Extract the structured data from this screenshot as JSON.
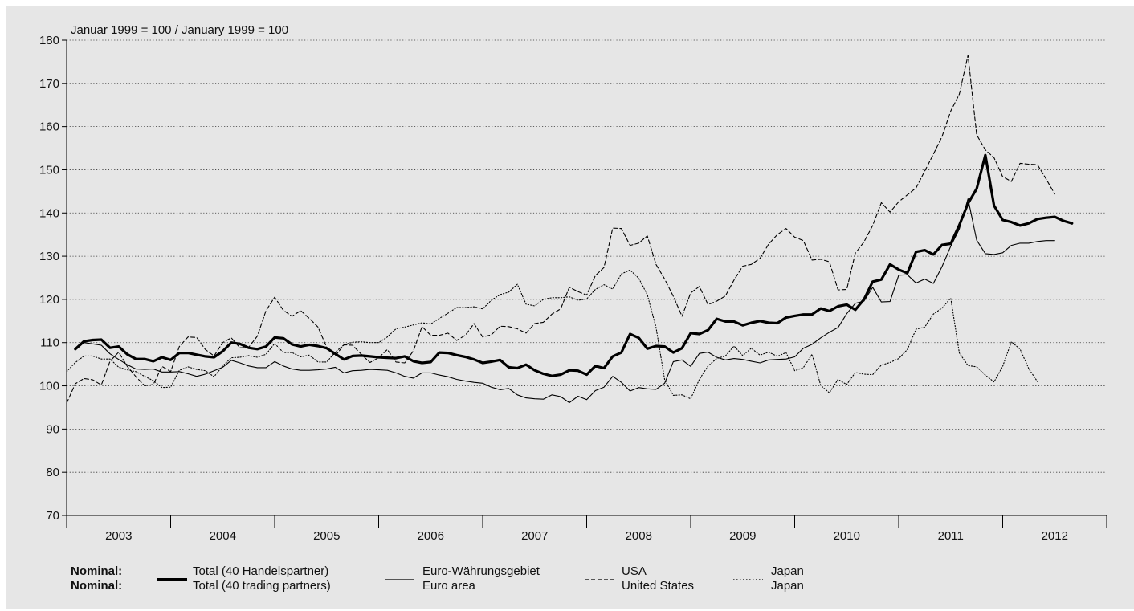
{
  "chart_data": {
    "type": "line",
    "subtitle": "Januar 1999 = 100 / January 1999 = 100",
    "ylim": [
      70,
      180
    ],
    "yticks": [
      70,
      80,
      90,
      100,
      110,
      120,
      130,
      140,
      150,
      160,
      170,
      180
    ],
    "x_start": "2002-12",
    "x_end": "2012-12",
    "x_categories": [
      "2003",
      "2004",
      "2005",
      "2006",
      "2007",
      "2008",
      "2009",
      "2010",
      "2011",
      "2012"
    ],
    "grid": "horizontal dotted",
    "legend_placement": "bottom",
    "legend_prefix": [
      "Nominal:",
      "Nominal:"
    ],
    "series": [
      {
        "name": "Total (40 Handelspartner)",
        "name_en": "Total (40 trading partners)",
        "style": "thick",
        "start": "2003-01",
        "values": [
          108.5,
          110.3,
          110.6,
          110.7,
          108.8,
          109.1,
          107.3,
          106.2,
          106.2,
          105.7,
          106.6,
          106.0,
          107.6,
          107.6,
          107.2,
          106.8,
          106.6,
          108.0,
          110.0,
          109.7,
          108.8,
          108.5,
          109.1,
          111.2,
          111.0,
          109.6,
          109.1,
          109.5,
          109.2,
          108.7,
          107.4,
          106.1,
          106.9,
          107.0,
          106.8,
          106.6,
          106.5,
          106.4,
          106.8,
          105.7,
          105.3,
          105.5,
          107.7,
          107.6,
          107.1,
          106.7,
          106.1,
          105.3,
          105.6,
          106.0,
          104.3,
          104.1,
          104.9,
          103.6,
          102.8,
          102.3,
          102.6,
          103.6,
          103.5,
          102.6,
          104.6,
          104.1,
          106.8,
          107.7,
          112.0,
          111.1,
          108.6,
          109.2,
          109.1,
          107.7,
          108.7,
          112.2,
          112.0,
          112.9,
          115.5,
          114.9,
          114.9,
          114.0,
          114.6,
          115.0,
          114.6,
          114.5,
          115.8,
          116.2,
          116.5,
          116.5,
          117.9,
          117.3,
          118.4,
          118.8,
          117.6,
          120.0,
          124.1,
          124.6,
          128.1,
          126.9,
          126.1,
          131.0,
          131.4,
          130.4,
          132.6,
          132.9,
          137.2,
          142.2,
          145.6,
          153.4,
          141.7,
          138.4,
          137.9,
          137.1,
          137.6,
          138.6,
          138.9,
          139.1,
          138.2,
          137.6
        ]
      },
      {
        "name": "Euro-Währungsgebiet",
        "name_en": "Euro area",
        "style": "thin",
        "start": "2003-01",
        "values": [
          108.3,
          110.0,
          109.7,
          109.4,
          107.4,
          106.1,
          104.9,
          103.9,
          103.8,
          103.9,
          103.2,
          103.2,
          103.3,
          102.8,
          102.2,
          102.7,
          103.5,
          104.3,
          105.9,
          105.3,
          104.6,
          104.2,
          104.2,
          105.6,
          104.6,
          103.9,
          103.6,
          103.6,
          103.7,
          103.9,
          104.3,
          103.0,
          103.5,
          103.6,
          103.8,
          103.7,
          103.6,
          103.0,
          102.2,
          101.8,
          103.0,
          103.0,
          102.5,
          102.1,
          101.5,
          101.1,
          100.8,
          100.6,
          99.7,
          99.1,
          99.4,
          97.9,
          97.2,
          97.0,
          96.9,
          97.9,
          97.5,
          96.1,
          97.6,
          96.8,
          98.9,
          99.7,
          102.2,
          100.8,
          98.8,
          99.6,
          99.3,
          99.2,
          100.6,
          105.6,
          106.0,
          104.5,
          107.5,
          107.8,
          106.6,
          106.0,
          106.3,
          106.1,
          105.7,
          105.3,
          106.0,
          106.1,
          106.2,
          106.7,
          108.7,
          109.6,
          111.1,
          112.4,
          113.5,
          116.7,
          119.1,
          119.6,
          122.8,
          119.4,
          119.5,
          125.6,
          125.7,
          123.8,
          124.7,
          123.7,
          127.6,
          132.3,
          136.3,
          143.3,
          133.7,
          130.6,
          130.4,
          130.8,
          132.5,
          133.0,
          133.0,
          133.4,
          133.6,
          133.6
        ]
      },
      {
        "name": "USA",
        "name_en": "United States",
        "style": "dashed",
        "start": "2002-12",
        "values": [
          96.0,
          100.5,
          101.7,
          101.4,
          100.2,
          105.7,
          107.8,
          104.5,
          102.1,
          100.0,
          100.3,
          104.5,
          103.3,
          109.1,
          111.3,
          111.2,
          108.4,
          106.9,
          110.0,
          111.1,
          108.8,
          108.9,
          111.5,
          117.4,
          120.5,
          117.5,
          116.1,
          117.4,
          115.6,
          113.6,
          108.9,
          106.9,
          109.5,
          109.4,
          107.3,
          105.4,
          106.5,
          108.4,
          105.5,
          105.3,
          108.1,
          113.7,
          111.7,
          111.7,
          112.2,
          110.5,
          111.7,
          114.4,
          111.3,
          111.8,
          113.8,
          113.7,
          113.2,
          112.2,
          114.4,
          114.7,
          116.6,
          117.8,
          122.8,
          121.8,
          121.0,
          125.5,
          127.4,
          136.5,
          136.4,
          132.5,
          133.0,
          134.7,
          128.1,
          124.7,
          120.7,
          116.1,
          121.5,
          123.0,
          118.8,
          119.6,
          120.8,
          124.5,
          127.7,
          128.1,
          129.5,
          132.8,
          135.0,
          136.4,
          134.4,
          133.6,
          129.1,
          129.3,
          128.7,
          122.2,
          122.3,
          130.7,
          133.3,
          137.1,
          142.4,
          140.2,
          142.6,
          144.2,
          145.8,
          149.7,
          153.6,
          157.7,
          163.6,
          167.5,
          176.5,
          158.1,
          154.6,
          152.8,
          148.4,
          147.3,
          151.5,
          151.3,
          151.2,
          147.9,
          144.4
        ]
      },
      {
        "name": "Japan",
        "name_en": "Japan",
        "style": "dotted",
        "start": "2002-12",
        "values": [
          103.3,
          105.4,
          106.9,
          106.9,
          106.2,
          106.2,
          104.3,
          103.7,
          103.3,
          102.2,
          101.2,
          99.6,
          99.7,
          103.6,
          104.4,
          103.8,
          103.5,
          102.1,
          104.6,
          106.5,
          106.6,
          107.0,
          106.6,
          107.3,
          109.8,
          107.7,
          107.7,
          106.7,
          107.1,
          105.5,
          105.5,
          107.8,
          109.5,
          110.1,
          110.2,
          110.0,
          110.0,
          111.3,
          113.2,
          113.6,
          114.1,
          114.6,
          114.3,
          115.6,
          116.8,
          118.1,
          118.1,
          118.3,
          117.8,
          119.8,
          121.1,
          121.7,
          123.5,
          118.9,
          118.5,
          120.0,
          120.4,
          120.4,
          120.6,
          119.8,
          120.1,
          122.3,
          123.4,
          122.4,
          125.9,
          126.8,
          124.9,
          121.1,
          113.6,
          101.4,
          97.8,
          97.9,
          97.0,
          101.5,
          104.6,
          106.3,
          106.9,
          109.2,
          107.0,
          108.7,
          107.1,
          107.8,
          106.8,
          107.7,
          103.5,
          104.2,
          107.3,
          100.1,
          98.4,
          101.5,
          100.3,
          103.1,
          102.7,
          102.6,
          104.8,
          105.4,
          106.3,
          108.4,
          113.1,
          113.6,
          116.6,
          118.0,
          120.3,
          107.6,
          104.7,
          104.4,
          102.5,
          100.9,
          104.5,
          110.2,
          108.5,
          104.0,
          101.0
        ]
      }
    ]
  }
}
